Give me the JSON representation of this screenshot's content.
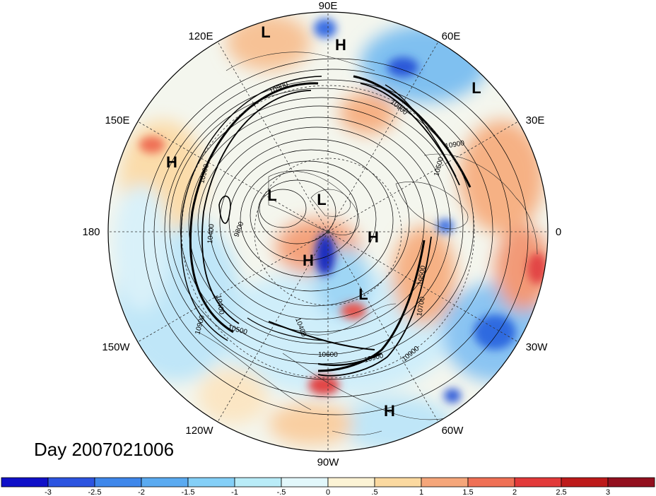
{
  "map": {
    "projection": "north polar stereographic",
    "longitude_labels": [
      "90E",
      "60E",
      "30E",
      "0",
      "30W",
      "60W",
      "90W",
      "120W",
      "150W",
      "180",
      "150E",
      "120E"
    ],
    "pressure_centers": [
      {
        "type": "L",
        "label": "L"
      },
      {
        "type": "H",
        "label": "H"
      },
      {
        "type": "L",
        "label": "L"
      },
      {
        "type": "H",
        "label": "H"
      },
      {
        "type": "L",
        "label": "L"
      },
      {
        "type": "L",
        "label": "L"
      },
      {
        "type": "H",
        "label": "H"
      },
      {
        "type": "H",
        "label": "H"
      },
      {
        "type": "L",
        "label": "L"
      },
      {
        "type": "H",
        "label": "H"
      }
    ],
    "contour_labels": [
      "10900",
      "10900",
      "10500",
      "10900",
      "10400",
      "9800",
      "10400",
      "10500",
      "10900",
      "10400",
      "10700",
      "10900",
      "10500",
      "10900",
      "10600",
      "10900"
    ],
    "day_label": "Day 2007021006"
  },
  "colorbar": {
    "ticks": [
      "-3",
      "-2.5",
      "-2",
      "-1.5",
      "-1",
      "-.5",
      "0",
      ".5",
      "1",
      "1.5",
      "2",
      "2.5",
      "3"
    ],
    "colors": [
      "#1010c8",
      "#2c54e0",
      "#3f87ea",
      "#5aaaf0",
      "#84cff7",
      "#b9ecf8",
      "#e2f7fb",
      "#fcf3d5",
      "#fbd9a0",
      "#f5a67a",
      "#ef7055",
      "#e23a3a",
      "#bd1a1a",
      "#92101e"
    ]
  }
}
